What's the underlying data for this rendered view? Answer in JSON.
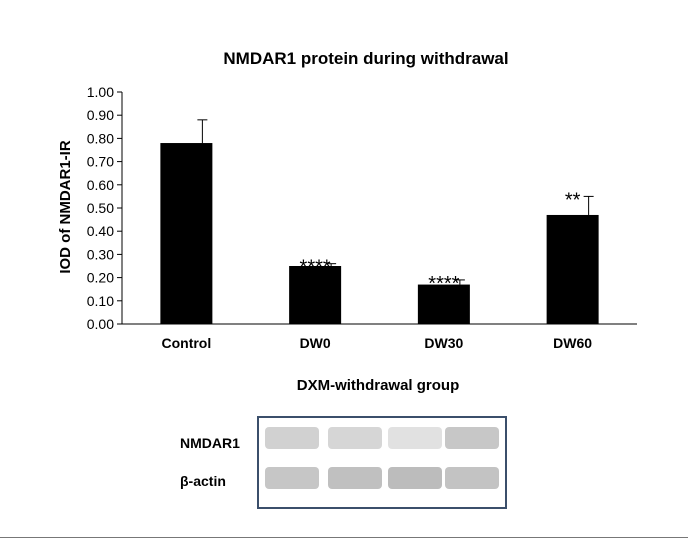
{
  "chart_data": {
    "type": "bar",
    "title": "NMDAR1 protein during withdrawal",
    "xlabel": "DXM-withdrawal group",
    "ylabel": "IOD of NMDAR1-IR",
    "categories": [
      "Control",
      "DW0",
      "DW30",
      "DW60"
    ],
    "values": [
      0.78,
      0.25,
      0.17,
      0.47
    ],
    "errors": [
      0.1,
      0.01,
      0.02,
      0.08
    ],
    "significance": [
      "",
      "****",
      "****",
      "**"
    ],
    "ylim": [
      0,
      1.0
    ],
    "yticks": [
      "0.00",
      "0.10",
      "0.20",
      "0.30",
      "0.40",
      "0.50",
      "0.60",
      "0.70",
      "0.80",
      "0.90",
      "1.00"
    ],
    "grid": false,
    "legend": "none",
    "bar_color": "#000000"
  },
  "blot": {
    "labels": [
      "NMDAR1",
      "β-actin"
    ],
    "border_color": "#3b4f6b"
  }
}
